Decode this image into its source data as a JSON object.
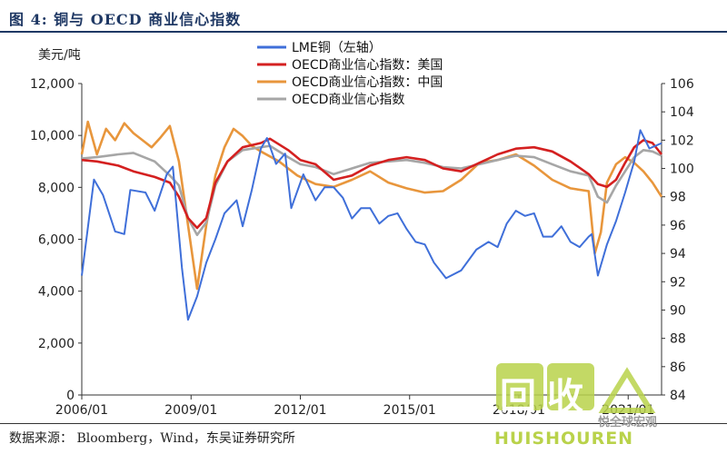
{
  "header": {
    "figure_title": "图 4:   铜与 OECD 商业信心指数"
  },
  "footer": {
    "source": "数据来源： Bloomberg，Wind，东吴证券研究所"
  },
  "watermark": {
    "logo_text": "回收",
    "brand": "HUISHOUREN",
    "wechat_text": "悦全球宏观"
  },
  "colors": {
    "lme": "#3f6fd9",
    "oecd_us": "#d42020",
    "oecd_cn": "#e8963c",
    "oecd": "#a6a6a6",
    "title": "#1f3864"
  },
  "chart_data": {
    "type": "line",
    "left_axis_unit": "美元/吨",
    "x_ticks": [
      "2006/01",
      "2009/01",
      "2012/01",
      "2015/01",
      "2018/01",
      "2021/01"
    ],
    "x_range": [
      "2006-01",
      "2021-12"
    ],
    "y_left": {
      "lim": [
        0,
        12000
      ],
      "ticks": [
        "0",
        "2,000",
        "4,000",
        "6,000",
        "8,000",
        "10,000",
        "12,000"
      ]
    },
    "y_right": {
      "lim": [
        84,
        106
      ],
      "ticks": [
        "84",
        "86",
        "88",
        "90",
        "92",
        "94",
        "96",
        "98",
        "100",
        "102",
        "104",
        "106"
      ]
    },
    "legend": {
      "placement": "top-center",
      "entries": [
        "LME铜（左轴）",
        "OECD商业信心指数：美国",
        "OECD商业信心指数：中国",
        "OECD商业信心指数"
      ]
    },
    "series": [
      {
        "name": "LME铜（左轴）",
        "axis": "left",
        "color": "#3f6fd9",
        "x": [
          "2006-01",
          "2006-05",
          "2006-08",
          "2006-12",
          "2007-03",
          "2007-05",
          "2007-10",
          "2008-01",
          "2008-05",
          "2008-07",
          "2008-10",
          "2008-12",
          "2009-03",
          "2009-06",
          "2009-09",
          "2009-12",
          "2010-04",
          "2010-06",
          "2010-09",
          "2010-12",
          "2011-02",
          "2011-05",
          "2011-08",
          "2011-10",
          "2012-02",
          "2012-06",
          "2012-09",
          "2012-12",
          "2013-03",
          "2013-06",
          "2013-09",
          "2013-12",
          "2014-03",
          "2014-06",
          "2014-09",
          "2014-12",
          "2015-03",
          "2015-06",
          "2015-09",
          "2016-01",
          "2016-06",
          "2016-11",
          "2017-03",
          "2017-06",
          "2017-09",
          "2017-12",
          "2018-03",
          "2018-06",
          "2018-09",
          "2018-12",
          "2019-03",
          "2019-06",
          "2019-09",
          "2019-12",
          "2020-01",
          "2020-03",
          "2020-06",
          "2020-09",
          "2020-12",
          "2021-03",
          "2021-05",
          "2021-08",
          "2021-12"
        ],
        "values": [
          4600,
          8300,
          7700,
          6300,
          6200,
          7900,
          7800,
          7100,
          8500,
          8800,
          4900,
          2900,
          3800,
          5100,
          6000,
          7000,
          7500,
          6500,
          7900,
          9500,
          9900,
          8900,
          9300,
          7200,
          8500,
          7500,
          8000,
          8000,
          7600,
          6800,
          7200,
          7200,
          6600,
          6900,
          7000,
          6400,
          5900,
          5800,
          5100,
          4500,
          4800,
          5600,
          5900,
          5700,
          6600,
          7100,
          6900,
          7000,
          6100,
          6100,
          6500,
          5900,
          5700,
          6100,
          6200,
          4600,
          5800,
          6700,
          7800,
          9000,
          10200,
          9500,
          9700
        ]
      },
      {
        "name": "OECD商业信心指数：美国",
        "axis": "right",
        "color": "#d42020",
        "x": [
          "2006-01",
          "2006-06",
          "2007-01",
          "2007-06",
          "2008-01",
          "2008-06",
          "2008-09",
          "2008-12",
          "2009-03",
          "2009-06",
          "2009-09",
          "2010-01",
          "2010-06",
          "2010-12",
          "2011-03",
          "2011-09",
          "2012-01",
          "2012-06",
          "2012-12",
          "2013-06",
          "2013-12",
          "2014-06",
          "2014-12",
          "2015-06",
          "2015-12",
          "2016-06",
          "2016-12",
          "2017-06",
          "2017-12",
          "2018-06",
          "2018-12",
          "2019-06",
          "2019-12",
          "2020-03",
          "2020-06",
          "2020-09",
          "2020-12",
          "2021-03",
          "2021-06",
          "2021-09",
          "2021-12"
        ],
        "values": [
          100.6,
          100.5,
          100.2,
          99.8,
          99.4,
          99.0,
          98.0,
          96.5,
          95.8,
          96.5,
          99.0,
          100.5,
          101.5,
          101.8,
          102.1,
          101.3,
          100.6,
          100.3,
          99.2,
          99.5,
          100.2,
          100.6,
          100.8,
          100.6,
          100.0,
          99.8,
          100.4,
          101.0,
          101.4,
          101.5,
          101.2,
          100.5,
          99.6,
          98.9,
          98.7,
          99.2,
          100.4,
          101.5,
          102.0,
          101.8,
          101.0
        ]
      },
      {
        "name": "OECD商业信心指数：中国",
        "axis": "right",
        "color": "#e8963c",
        "x": [
          "2006-01",
          "2006-03",
          "2006-06",
          "2006-09",
          "2006-12",
          "2007-03",
          "2007-06",
          "2007-09",
          "2007-12",
          "2008-03",
          "2008-06",
          "2008-09",
          "2008-12",
          "2009-03",
          "2009-06",
          "2009-09",
          "2009-12",
          "2010-03",
          "2010-06",
          "2010-09",
          "2010-12",
          "2011-06",
          "2011-12",
          "2012-06",
          "2012-12",
          "2013-06",
          "2013-12",
          "2014-06",
          "2014-12",
          "2015-06",
          "2015-12",
          "2016-06",
          "2016-12",
          "2017-06",
          "2017-12",
          "2018-06",
          "2018-12",
          "2019-06",
          "2019-12",
          "2020-02",
          "2020-04",
          "2020-06",
          "2020-09",
          "2020-12",
          "2021-03",
          "2021-06",
          "2021-09",
          "2021-12"
        ],
        "values": [
          101.0,
          103.3,
          101.0,
          102.8,
          102.0,
          103.2,
          102.5,
          102.0,
          101.5,
          102.2,
          103.0,
          100.5,
          96.0,
          91.5,
          96.0,
          99.5,
          101.5,
          102.8,
          102.3,
          101.6,
          101.2,
          100.5,
          99.5,
          98.9,
          98.7,
          99.2,
          99.8,
          99.0,
          98.6,
          98.3,
          98.4,
          99.2,
          100.4,
          100.6,
          101.0,
          100.2,
          99.2,
          98.6,
          98.4,
          94.0,
          95.5,
          99.0,
          100.3,
          100.8,
          100.4,
          99.8,
          99.0,
          98.0
        ]
      },
      {
        "name": "OECD商业信心指数",
        "axis": "right",
        "color": "#a6a6a6",
        "x": [
          "2006-01",
          "2006-06",
          "2007-01",
          "2007-06",
          "2008-01",
          "2008-06",
          "2008-09",
          "2008-12",
          "2009-03",
          "2009-06",
          "2009-09",
          "2010-01",
          "2010-06",
          "2010-12",
          "2011-03",
          "2011-09",
          "2012-01",
          "2012-06",
          "2012-12",
          "2013-06",
          "2013-12",
          "2014-06",
          "2014-12",
          "2015-06",
          "2015-12",
          "2016-06",
          "2016-12",
          "2017-06",
          "2017-12",
          "2018-06",
          "2018-12",
          "2019-06",
          "2019-12",
          "2020-03",
          "2020-06",
          "2020-09",
          "2020-12",
          "2021-03",
          "2021-06",
          "2021-09",
          "2021-12"
        ],
        "values": [
          100.7,
          100.8,
          101.0,
          101.1,
          100.5,
          99.5,
          98.8,
          96.5,
          95.3,
          96.2,
          98.8,
          100.5,
          101.3,
          101.5,
          101.6,
          100.8,
          100.3,
          100.1,
          99.6,
          100.0,
          100.4,
          100.5,
          100.6,
          100.4,
          100.1,
          100.0,
          100.3,
          100.6,
          100.9,
          100.8,
          100.3,
          99.8,
          99.5,
          98.0,
          97.6,
          98.8,
          99.8,
          100.8,
          101.3,
          101.2,
          100.9
        ]
      }
    ]
  }
}
